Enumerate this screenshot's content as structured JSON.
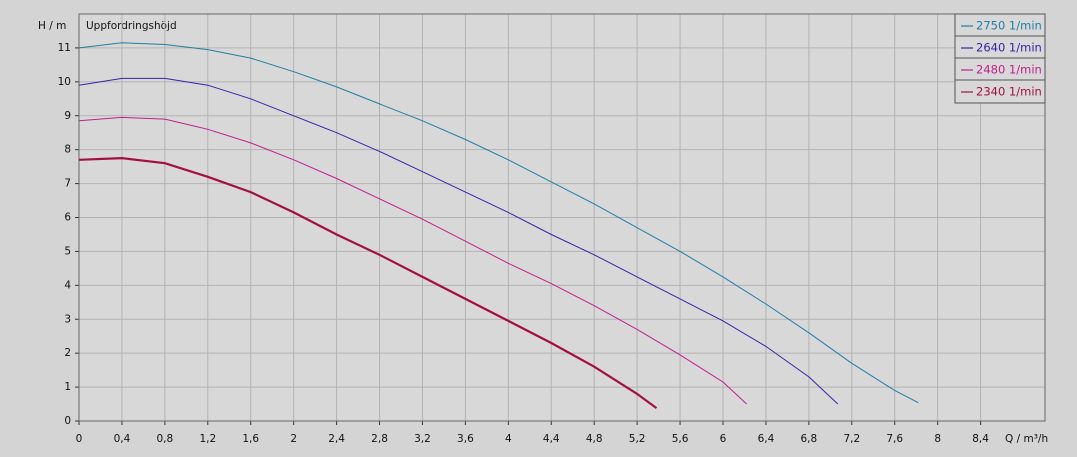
{
  "chart_data": {
    "type": "line",
    "y_label": "H / m",
    "x_label": "Q / m³/h",
    "annotation": "Uppfordringshöjd",
    "xlim": [
      0,
      9
    ],
    "ylim": [
      0,
      12
    ],
    "xticks": [
      0,
      {
        "value": 0.4,
        "label": "0,4"
      },
      {
        "value": 0.8,
        "label": "0,8"
      },
      {
        "value": 1.2,
        "label": "1,2"
      },
      {
        "value": 1.6,
        "label": "1,6"
      },
      2,
      {
        "value": 2.4,
        "label": "2,4"
      },
      {
        "value": 2.8,
        "label": "2,8"
      },
      {
        "value": 3.2,
        "label": "3,2"
      },
      {
        "value": 3.6,
        "label": "3,6"
      },
      4,
      {
        "value": 4.4,
        "label": "4,4"
      },
      {
        "value": 4.8,
        "label": "4,8"
      },
      {
        "value": 5.2,
        "label": "5,2"
      },
      {
        "value": 5.6,
        "label": "5,6"
      },
      6,
      {
        "value": 6.4,
        "label": "6,4"
      },
      {
        "value": 6.8,
        "label": "6,8"
      },
      {
        "value": 7.2,
        "label": "7,2"
      },
      {
        "value": 7.6,
        "label": "7,6"
      },
      8,
      {
        "value": 8.4,
        "label": "8,4"
      }
    ],
    "yticks": [
      0,
      1,
      2,
      3,
      4,
      5,
      6,
      7,
      8,
      9,
      10,
      11
    ],
    "grid": true,
    "legend": "top-right",
    "series": [
      {
        "name": "2750 1/min",
        "color": "#1f7fa6",
        "width": 1,
        "x": [
          0,
          0.4,
          0.8,
          1.2,
          1.6,
          2,
          2.4,
          2.8,
          3.2,
          3.6,
          4,
          4.4,
          4.8,
          5.2,
          5.6,
          6,
          6.4,
          6.8,
          7.2,
          7.6,
          7.82
        ],
        "values": [
          11.0,
          11.15,
          11.1,
          10.95,
          10.7,
          10.3,
          9.85,
          9.35,
          8.85,
          8.3,
          7.7,
          7.05,
          6.4,
          5.7,
          5.0,
          4.25,
          3.45,
          2.6,
          1.7,
          0.9,
          0.54
        ]
      },
      {
        "name": "2640 1/min",
        "color": "#3a22a8",
        "width": 1,
        "x": [
          0,
          0.4,
          0.8,
          1.2,
          1.6,
          2,
          2.4,
          2.8,
          3.2,
          3.6,
          4,
          4.4,
          4.8,
          5.2,
          5.6,
          6,
          6.4,
          6.8,
          7.07
        ],
        "values": [
          9.9,
          10.1,
          10.1,
          9.9,
          9.5,
          9.0,
          8.5,
          7.95,
          7.35,
          6.75,
          6.15,
          5.5,
          4.9,
          4.25,
          3.6,
          2.95,
          2.2,
          1.3,
          0.5
        ]
      },
      {
        "name": "2480 1/min",
        "color": "#c0208f",
        "width": 1,
        "x": [
          0,
          0.4,
          0.8,
          1.2,
          1.6,
          2,
          2.4,
          2.8,
          3.2,
          3.6,
          4,
          4.4,
          4.8,
          5.2,
          5.6,
          6,
          6.22
        ],
        "values": [
          8.85,
          8.95,
          8.9,
          8.6,
          8.2,
          7.7,
          7.15,
          6.55,
          5.95,
          5.3,
          4.65,
          4.05,
          3.4,
          2.7,
          1.95,
          1.15,
          0.5
        ]
      },
      {
        "name": "2340 1/min",
        "color": "#a3103f",
        "width": 2.2,
        "x": [
          0,
          0.4,
          0.8,
          1.2,
          1.6,
          2,
          2.4,
          2.8,
          3.2,
          3.6,
          4,
          4.4,
          4.8,
          5.2,
          5.38
        ],
        "values": [
          7.7,
          7.75,
          7.6,
          7.2,
          6.75,
          6.15,
          5.5,
          4.9,
          4.25,
          3.6,
          2.95,
          2.3,
          1.6,
          0.8,
          0.38
        ]
      }
    ]
  }
}
